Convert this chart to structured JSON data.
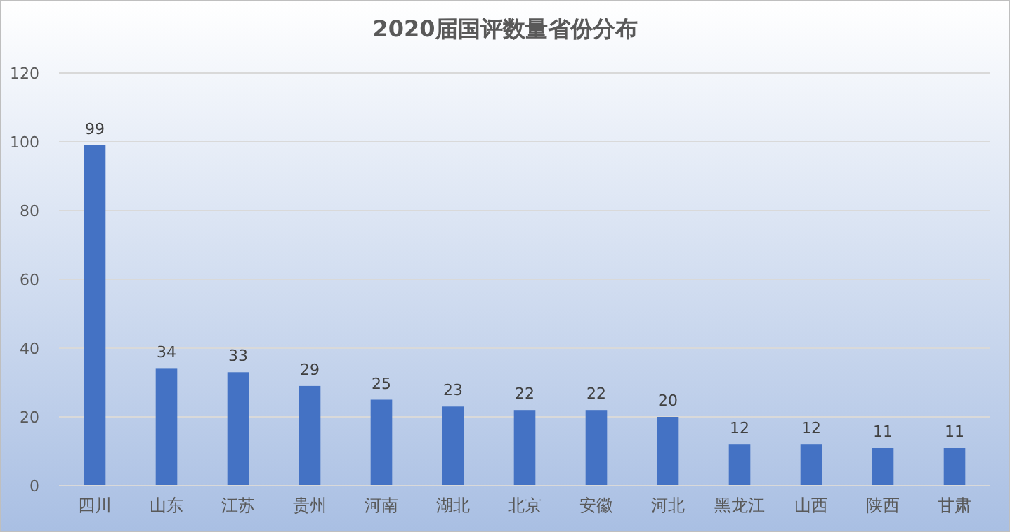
{
  "chart_data": {
    "type": "bar",
    "title": "2020届国评数量省份分布",
    "categories": [
      "四川",
      "山东",
      "江苏",
      "贵州",
      "河南",
      "湖北",
      "北京",
      "安徽",
      "河北",
      "黑龙江",
      "山西",
      "陕西",
      "甘肃"
    ],
    "values": [
      99,
      34,
      33,
      29,
      25,
      23,
      22,
      22,
      20,
      12,
      12,
      11,
      11
    ],
    "color": "#4472c4",
    "ylim": [
      0,
      120
    ],
    "yticks": [
      0,
      20,
      40,
      60,
      80,
      100,
      120
    ],
    "grid": "y",
    "data_labels": true
  }
}
